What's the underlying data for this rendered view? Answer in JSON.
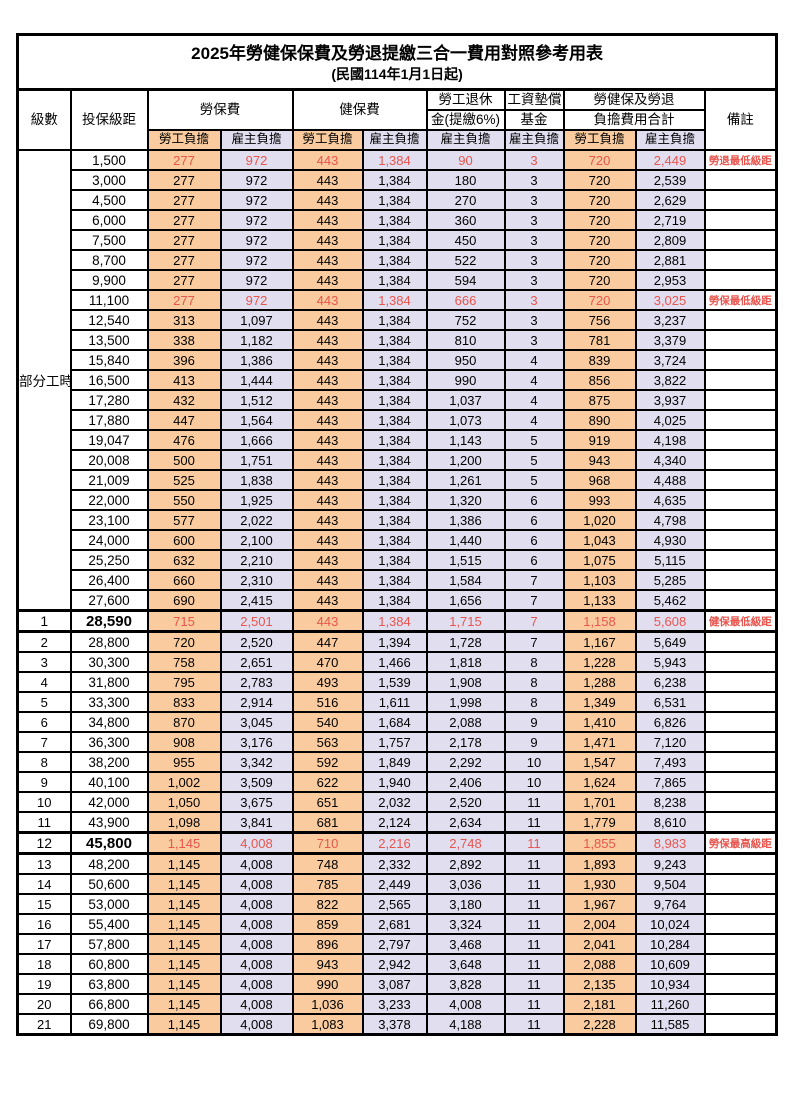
{
  "table": {
    "title": "2025年勞健保保費及勞退提繳三合一費用對照參考用表",
    "subtitle": "(民國114年1月1日起)",
    "headers": {
      "level": "級數",
      "bracket": "投保級距",
      "labor": "勞保費",
      "health": "健保費",
      "pension_line1": "勞工退休",
      "pension_line2": "金(提繳6%)",
      "fund_line1": "工資墊償",
      "fund_line2": "基金",
      "total_line1": "勞健保及勞退",
      "total_line2": "負擔費用合計",
      "remark": "備註",
      "employee": "勞工負擔",
      "employer": "雇主負擔"
    },
    "part_time_label": "部分工時",
    "colors": {
      "employee_bg": "#f9cb9e",
      "employer_bg": "#e1def0",
      "highlight_text": "#e8554e"
    },
    "rows": [
      {
        "level": "",
        "bracket": "1,500",
        "values": [
          "277",
          "972",
          "443",
          "1,384",
          "90",
          "3",
          "720",
          "2,449"
        ],
        "note": "勞退最低級距",
        "highlight": true,
        "emphasis": false
      },
      {
        "level": "",
        "bracket": "3,000",
        "values": [
          "277",
          "972",
          "443",
          "1,384",
          "180",
          "3",
          "720",
          "2,539"
        ],
        "note": "",
        "highlight": false,
        "emphasis": false
      },
      {
        "level": "",
        "bracket": "4,500",
        "values": [
          "277",
          "972",
          "443",
          "1,384",
          "270",
          "3",
          "720",
          "2,629"
        ],
        "note": "",
        "highlight": false,
        "emphasis": false
      },
      {
        "level": "",
        "bracket": "6,000",
        "values": [
          "277",
          "972",
          "443",
          "1,384",
          "360",
          "3",
          "720",
          "2,719"
        ],
        "note": "",
        "highlight": false,
        "emphasis": false
      },
      {
        "level": "",
        "bracket": "7,500",
        "values": [
          "277",
          "972",
          "443",
          "1,384",
          "450",
          "3",
          "720",
          "2,809"
        ],
        "note": "",
        "highlight": false,
        "emphasis": false
      },
      {
        "level": "",
        "bracket": "8,700",
        "values": [
          "277",
          "972",
          "443",
          "1,384",
          "522",
          "3",
          "720",
          "2,881"
        ],
        "note": "",
        "highlight": false,
        "emphasis": false
      },
      {
        "level": "",
        "bracket": "9,900",
        "values": [
          "277",
          "972",
          "443",
          "1,384",
          "594",
          "3",
          "720",
          "2,953"
        ],
        "note": "",
        "highlight": false,
        "emphasis": false
      },
      {
        "level": "",
        "bracket": "11,100",
        "values": [
          "277",
          "972",
          "443",
          "1,384",
          "666",
          "3",
          "720",
          "3,025"
        ],
        "note": "勞保最低級距",
        "highlight": true,
        "emphasis": false
      },
      {
        "level": "",
        "bracket": "12,540",
        "values": [
          "313",
          "1,097",
          "443",
          "1,384",
          "752",
          "3",
          "756",
          "3,237"
        ],
        "note": "",
        "highlight": false,
        "emphasis": false
      },
      {
        "level": "",
        "bracket": "13,500",
        "values": [
          "338",
          "1,182",
          "443",
          "1,384",
          "810",
          "3",
          "781",
          "3,379"
        ],
        "note": "",
        "highlight": false,
        "emphasis": false
      },
      {
        "level": "",
        "bracket": "15,840",
        "values": [
          "396",
          "1,386",
          "443",
          "1,384",
          "950",
          "4",
          "839",
          "3,724"
        ],
        "note": "",
        "highlight": false,
        "emphasis": false
      },
      {
        "level": "",
        "bracket": "16,500",
        "values": [
          "413",
          "1,444",
          "443",
          "1,384",
          "990",
          "4",
          "856",
          "3,822"
        ],
        "note": "",
        "highlight": false,
        "emphasis": false
      },
      {
        "level": "",
        "bracket": "17,280",
        "values": [
          "432",
          "1,512",
          "443",
          "1,384",
          "1,037",
          "4",
          "875",
          "3,937"
        ],
        "note": "",
        "highlight": false,
        "emphasis": false
      },
      {
        "level": "",
        "bracket": "17,880",
        "values": [
          "447",
          "1,564",
          "443",
          "1,384",
          "1,073",
          "4",
          "890",
          "4,025"
        ],
        "note": "",
        "highlight": false,
        "emphasis": false
      },
      {
        "level": "",
        "bracket": "19,047",
        "values": [
          "476",
          "1,666",
          "443",
          "1,384",
          "1,143",
          "5",
          "919",
          "4,198"
        ],
        "note": "",
        "highlight": false,
        "emphasis": false
      },
      {
        "level": "",
        "bracket": "20,008",
        "values": [
          "500",
          "1,751",
          "443",
          "1,384",
          "1,200",
          "5",
          "943",
          "4,340"
        ],
        "note": "",
        "highlight": false,
        "emphasis": false
      },
      {
        "level": "",
        "bracket": "21,009",
        "values": [
          "525",
          "1,838",
          "443",
          "1,384",
          "1,261",
          "5",
          "968",
          "4,488"
        ],
        "note": "",
        "highlight": false,
        "emphasis": false
      },
      {
        "level": "",
        "bracket": "22,000",
        "values": [
          "550",
          "1,925",
          "443",
          "1,384",
          "1,320",
          "6",
          "993",
          "4,635"
        ],
        "note": "",
        "highlight": false,
        "emphasis": false
      },
      {
        "level": "",
        "bracket": "23,100",
        "values": [
          "577",
          "2,022",
          "443",
          "1,384",
          "1,386",
          "6",
          "1,020",
          "4,798"
        ],
        "note": "",
        "highlight": false,
        "emphasis": false
      },
      {
        "level": "",
        "bracket": "24,000",
        "values": [
          "600",
          "2,100",
          "443",
          "1,384",
          "1,440",
          "6",
          "1,043",
          "4,930"
        ],
        "note": "",
        "highlight": false,
        "emphasis": false
      },
      {
        "level": "",
        "bracket": "25,250",
        "values": [
          "632",
          "2,210",
          "443",
          "1,384",
          "1,515",
          "6",
          "1,075",
          "5,115"
        ],
        "note": "",
        "highlight": false,
        "emphasis": false
      },
      {
        "level": "",
        "bracket": "26,400",
        "values": [
          "660",
          "2,310",
          "443",
          "1,384",
          "1,584",
          "7",
          "1,103",
          "5,285"
        ],
        "note": "",
        "highlight": false,
        "emphasis": false
      },
      {
        "level": "",
        "bracket": "27,600",
        "values": [
          "690",
          "2,415",
          "443",
          "1,384",
          "1,656",
          "7",
          "1,133",
          "5,462"
        ],
        "note": "",
        "highlight": false,
        "emphasis": false
      },
      {
        "level": "1",
        "bracket": "28,590",
        "values": [
          "715",
          "2,501",
          "443",
          "1,384",
          "1,715",
          "7",
          "1,158",
          "5,608"
        ],
        "note": "健保最低級距",
        "highlight": true,
        "emphasis": true
      },
      {
        "level": "2",
        "bracket": "28,800",
        "values": [
          "720",
          "2,520",
          "447",
          "1,394",
          "1,728",
          "7",
          "1,167",
          "5,649"
        ],
        "note": "",
        "highlight": false,
        "emphasis": false
      },
      {
        "level": "3",
        "bracket": "30,300",
        "values": [
          "758",
          "2,651",
          "470",
          "1,466",
          "1,818",
          "8",
          "1,228",
          "5,943"
        ],
        "note": "",
        "highlight": false,
        "emphasis": false
      },
      {
        "level": "4",
        "bracket": "31,800",
        "values": [
          "795",
          "2,783",
          "493",
          "1,539",
          "1,908",
          "8",
          "1,288",
          "6,238"
        ],
        "note": "",
        "highlight": false,
        "emphasis": false
      },
      {
        "level": "5",
        "bracket": "33,300",
        "values": [
          "833",
          "2,914",
          "516",
          "1,611",
          "1,998",
          "8",
          "1,349",
          "6,531"
        ],
        "note": "",
        "highlight": false,
        "emphasis": false
      },
      {
        "level": "6",
        "bracket": "34,800",
        "values": [
          "870",
          "3,045",
          "540",
          "1,684",
          "2,088",
          "9",
          "1,410",
          "6,826"
        ],
        "note": "",
        "highlight": false,
        "emphasis": false
      },
      {
        "level": "7",
        "bracket": "36,300",
        "values": [
          "908",
          "3,176",
          "563",
          "1,757",
          "2,178",
          "9",
          "1,471",
          "7,120"
        ],
        "note": "",
        "highlight": false,
        "emphasis": false
      },
      {
        "level": "8",
        "bracket": "38,200",
        "values": [
          "955",
          "3,342",
          "592",
          "1,849",
          "2,292",
          "10",
          "1,547",
          "7,493"
        ],
        "note": "",
        "highlight": false,
        "emphasis": false
      },
      {
        "level": "9",
        "bracket": "40,100",
        "values": [
          "1,002",
          "3,509",
          "622",
          "1,940",
          "2,406",
          "10",
          "1,624",
          "7,865"
        ],
        "note": "",
        "highlight": false,
        "emphasis": false
      },
      {
        "level": "10",
        "bracket": "42,000",
        "values": [
          "1,050",
          "3,675",
          "651",
          "2,032",
          "2,520",
          "11",
          "1,701",
          "8,238"
        ],
        "note": "",
        "highlight": false,
        "emphasis": false
      },
      {
        "level": "11",
        "bracket": "43,900",
        "values": [
          "1,098",
          "3,841",
          "681",
          "2,124",
          "2,634",
          "11",
          "1,779",
          "8,610"
        ],
        "note": "",
        "highlight": false,
        "emphasis": false
      },
      {
        "level": "12",
        "bracket": "45,800",
        "values": [
          "1,145",
          "4,008",
          "710",
          "2,216",
          "2,748",
          "11",
          "1,855",
          "8,983"
        ],
        "note": "勞保最高級距",
        "highlight": true,
        "emphasis": true
      },
      {
        "level": "13",
        "bracket": "48,200",
        "values": [
          "1,145",
          "4,008",
          "748",
          "2,332",
          "2,892",
          "11",
          "1,893",
          "9,243"
        ],
        "note": "",
        "highlight": false,
        "emphasis": false
      },
      {
        "level": "14",
        "bracket": "50,600",
        "values": [
          "1,145",
          "4,008",
          "785",
          "2,449",
          "3,036",
          "11",
          "1,930",
          "9,504"
        ],
        "note": "",
        "highlight": false,
        "emphasis": false
      },
      {
        "level": "15",
        "bracket": "53,000",
        "values": [
          "1,145",
          "4,008",
          "822",
          "2,565",
          "3,180",
          "11",
          "1,967",
          "9,764"
        ],
        "note": "",
        "highlight": false,
        "emphasis": false
      },
      {
        "level": "16",
        "bracket": "55,400",
        "values": [
          "1,145",
          "4,008",
          "859",
          "2,681",
          "3,324",
          "11",
          "2,004",
          "10,024"
        ],
        "note": "",
        "highlight": false,
        "emphasis": false
      },
      {
        "level": "17",
        "bracket": "57,800",
        "values": [
          "1,145",
          "4,008",
          "896",
          "2,797",
          "3,468",
          "11",
          "2,041",
          "10,284"
        ],
        "note": "",
        "highlight": false,
        "emphasis": false
      },
      {
        "level": "18",
        "bracket": "60,800",
        "values": [
          "1,145",
          "4,008",
          "943",
          "2,942",
          "3,648",
          "11",
          "2,088",
          "10,609"
        ],
        "note": "",
        "highlight": false,
        "emphasis": false
      },
      {
        "level": "19",
        "bracket": "63,800",
        "values": [
          "1,145",
          "4,008",
          "990",
          "3,087",
          "3,828",
          "11",
          "2,135",
          "10,934"
        ],
        "note": "",
        "highlight": false,
        "emphasis": false
      },
      {
        "level": "20",
        "bracket": "66,800",
        "values": [
          "1,145",
          "4,008",
          "1,036",
          "3,233",
          "4,008",
          "11",
          "2,181",
          "11,260"
        ],
        "note": "",
        "highlight": false,
        "emphasis": false
      },
      {
        "level": "21",
        "bracket": "69,800",
        "values": [
          "1,145",
          "4,008",
          "1,083",
          "3,378",
          "4,188",
          "11",
          "2,228",
          "11,585"
        ],
        "note": "",
        "highlight": false,
        "emphasis": false
      }
    ],
    "part_time_row_count": 23,
    "value_column_types": [
      "emp",
      "er",
      "emp",
      "er",
      "er",
      "er",
      "emp",
      "er"
    ]
  }
}
